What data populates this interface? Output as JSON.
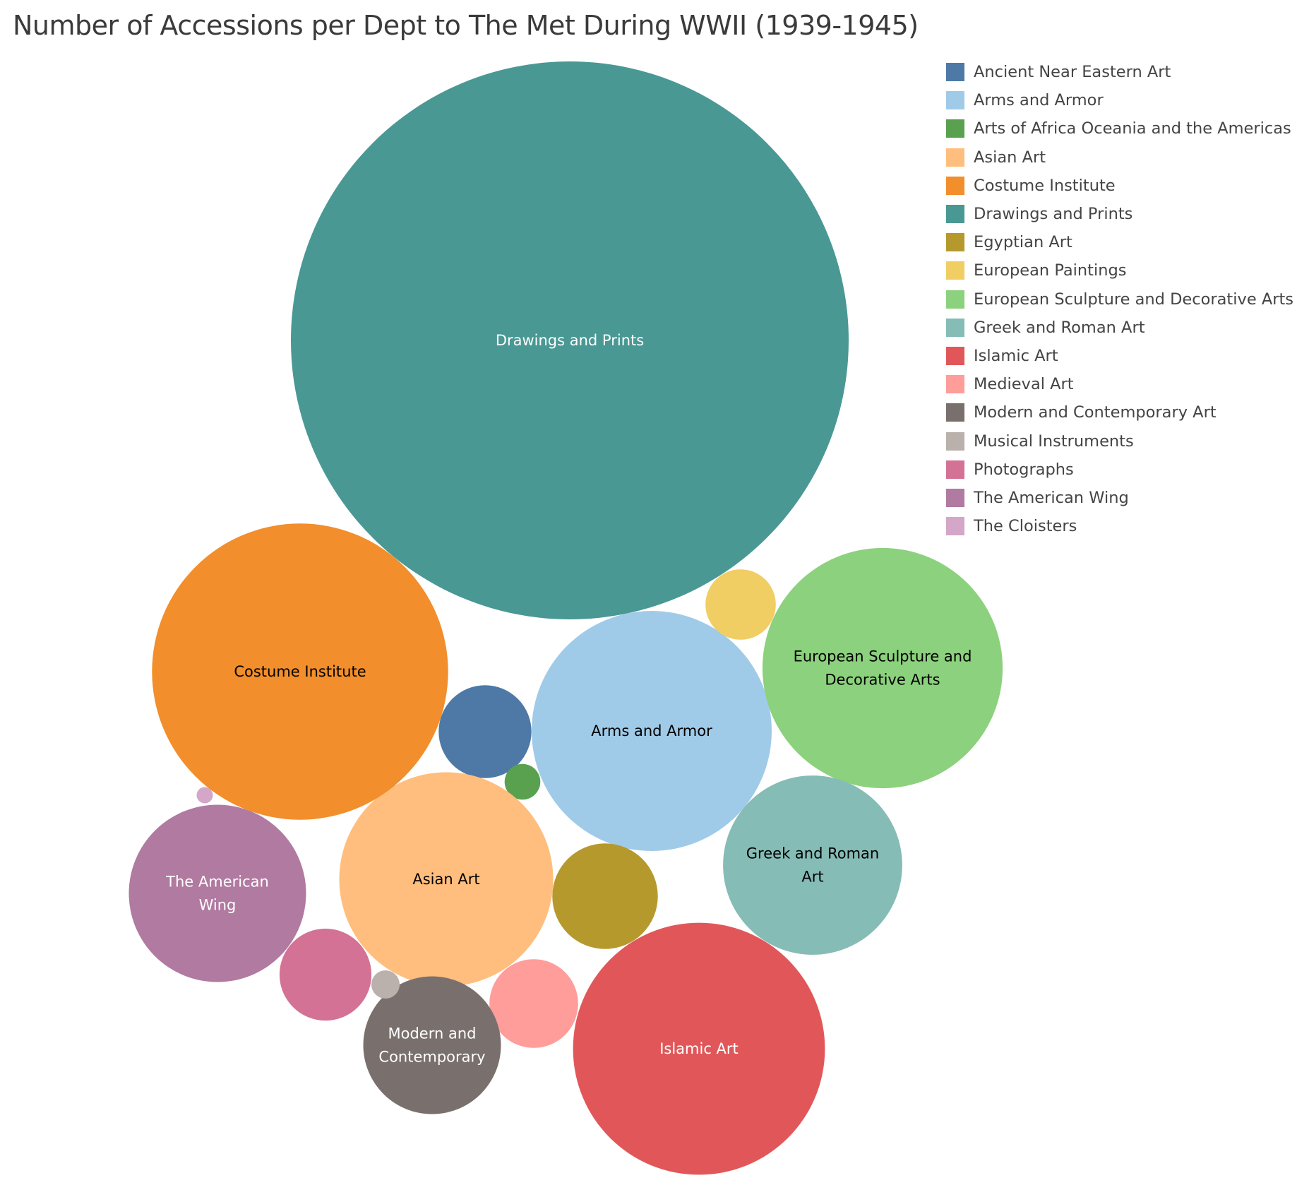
{
  "chart_data": {
    "type": "bubble",
    "title": "Number of Accessions per Dept to The Met During WWII (1939-1945)",
    "value_note": "",
    "legend_position": "right",
    "series": [
      {
        "name": "Ancient Near Eastern Art",
        "color": "#4e79a7",
        "label": [],
        "label_color": "#000000",
        "value": 162
      },
      {
        "name": "Arms and Armor",
        "color": "#a0cbe8",
        "label": [
          "Arms and Armor"
        ],
        "label_color": "#000000",
        "value": 1083
      },
      {
        "name": "Arts of Africa Oceania and the Americas",
        "color": "#59a14f",
        "label": [],
        "label_color": "#000000",
        "value": 24
      },
      {
        "name": "Asian Art",
        "color": "#ffbe7d",
        "label": [
          "Asian Art"
        ],
        "label_color": "#000000",
        "value": 860
      },
      {
        "name": "Costume Institute",
        "color": "#f28e2b",
        "label": [
          "Costume Institute"
        ],
        "label_color": "#000000",
        "value": 1648
      },
      {
        "name": "Drawings and Prints",
        "color": "#499894",
        "label": [
          "Drawings and Prints"
        ],
        "label_color": "#ffffff",
        "value": 5848
      },
      {
        "name": "Egyptian Art",
        "color": "#b6992d",
        "label": [],
        "label_color": "#000000",
        "value": 209
      },
      {
        "name": "European Paintings",
        "color": "#f1ce63",
        "label": [],
        "label_color": "#000000",
        "value": 93
      },
      {
        "name": "European Sculpture and Decorative Arts",
        "color": "#8cd17d",
        "label": [
          "European Sculpture and",
          "Decorative Arts"
        ],
        "label_color": "#000000",
        "value": 1085
      },
      {
        "name": "Greek and Roman Art",
        "color": "#86bcb6",
        "label": [
          "Greek and Roman",
          "Art"
        ],
        "label_color": "#000000",
        "value": 604
      },
      {
        "name": "Islamic Art",
        "color": "#e15759",
        "label": [
          "Islamic Art"
        ],
        "label_color": "#ffffff",
        "value": 1193
      },
      {
        "name": "Medieval Art",
        "color": "#ff9d9a",
        "label": [],
        "label_color": "#000000",
        "value": 148
      },
      {
        "name": "Modern and Contemporary Art",
        "color": "#79706e",
        "label": [
          "Modern and",
          "Contemporary"
        ],
        "label_color": "#ffffff",
        "value": 356
      },
      {
        "name": "Musical Instruments",
        "color": "#bab0ac",
        "label": [],
        "label_color": "#000000",
        "value": 15
      },
      {
        "name": "Photographs",
        "color": "#d37295",
        "label": [],
        "label_color": "#000000",
        "value": 159
      },
      {
        "name": "The American Wing",
        "color": "#b07aa1",
        "label": [
          "The American",
          "Wing"
        ],
        "label_color": "#ffffff",
        "value": 590
      },
      {
        "name": "The Cloisters",
        "color": "#d4a6c8",
        "label": [],
        "label_color": "#000000",
        "value": 5
      }
    ]
  }
}
